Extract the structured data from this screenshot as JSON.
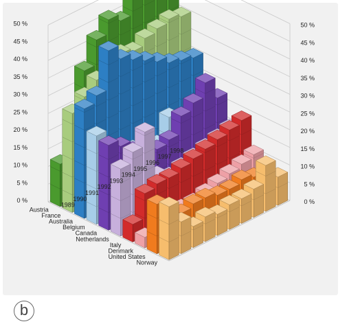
{
  "panel_label": "b",
  "chart_data": {
    "type": "bar3d",
    "title": "",
    "xlabel": "",
    "ylabel": "",
    "ylim": [
      0,
      50
    ],
    "y_ticks": [
      "0 %",
      "5 %",
      "10 %",
      "15 %",
      "20 %",
      "25 %",
      "30 %",
      "35 %",
      "40 %",
      "45 %",
      "50 %"
    ],
    "grid": true,
    "categories": [
      "Austria",
      "France",
      "Australia",
      "Belgium",
      "Canada",
      "Netherlands",
      "Italy",
      "Denmark",
      "United States",
      "Norway"
    ],
    "years": [
      "1989",
      "1990",
      "1991",
      "1992",
      "1993",
      "1994",
      "1995",
      "1996",
      "1997",
      "1998"
    ],
    "colors": [
      "#4a9a2e",
      "#a8cc7e",
      "#2d7fc4",
      "#a7cde8",
      "#6f3fb1",
      "#c7b0dc",
      "#d22b2b",
      "#eea0a6",
      "#f07b1e",
      "#f6bd6d"
    ],
    "series": [
      {
        "values": [
          12,
          22,
          35,
          42,
          46,
          44,
          50,
          48,
          47,
          45
        ]
      },
      {
        "values": [
          28,
          31,
          34,
          36,
          38,
          37,
          39,
          40,
          41,
          40
        ]
      },
      {
        "values": [
          31,
          33,
          44,
          40,
          38,
          36,
          34,
          32,
          31,
          30
        ]
      },
      {
        "values": [
          25,
          20,
          18,
          16,
          18,
          14,
          20,
          18,
          19,
          17
        ]
      },
      {
        "values": [
          24,
          22,
          19,
          17,
          16,
          17,
          22,
          24,
          28,
          22
        ]
      },
      {
        "values": [
          19,
          22,
          26,
          12,
          10,
          11,
          12,
          13,
          14,
          15
        ]
      },
      {
        "values": [
          5,
          12,
          13,
          13,
          14,
          15,
          16,
          17,
          18,
          19
        ]
      },
      {
        "values": [
          3,
          5,
          5,
          6,
          6,
          7,
          8,
          9,
          10,
          11
        ]
      },
      {
        "values": [
          14,
          10,
          8,
          9,
          9,
          8,
          8,
          9,
          8,
          7
        ]
      },
      {
        "values": [
          15,
          9,
          6,
          7,
          6,
          7,
          7,
          8,
          13,
          8
        ]
      }
    ]
  }
}
